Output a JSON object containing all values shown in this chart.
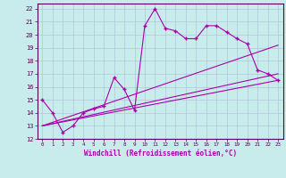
{
  "xlabel": "Windchill (Refroidissement éolien,°C)",
  "background_color": "#c8ecec",
  "grid_color": "#b0c8d8",
  "line_color": "#aa00aa",
  "xlim": [
    -0.5,
    23.5
  ],
  "ylim": [
    12,
    22.4
  ],
  "xticks": [
    0,
    1,
    2,
    3,
    4,
    5,
    6,
    7,
    8,
    9,
    10,
    11,
    12,
    13,
    14,
    15,
    16,
    17,
    18,
    19,
    20,
    21,
    22,
    23
  ],
  "yticks": [
    12,
    13,
    14,
    15,
    16,
    17,
    18,
    19,
    20,
    21,
    22
  ],
  "line1_x": [
    0,
    1,
    2,
    3,
    4,
    5,
    6,
    7,
    8,
    9,
    10,
    11,
    12,
    13,
    14,
    15,
    16,
    17,
    18,
    19,
    20,
    21,
    22,
    23
  ],
  "line1_y": [
    15.0,
    14.0,
    12.5,
    13.0,
    14.0,
    14.3,
    14.5,
    16.7,
    15.8,
    14.2,
    20.7,
    22.0,
    20.5,
    20.3,
    19.7,
    19.7,
    20.7,
    20.7,
    20.2,
    19.7,
    19.3,
    17.3,
    17.0,
    16.5
  ],
  "line2_x": [
    0,
    23
  ],
  "line2_y": [
    13.0,
    16.5
  ],
  "line3_x": [
    0,
    23
  ],
  "line3_y": [
    13.0,
    17.0
  ],
  "line4_x": [
    0,
    23
  ],
  "line4_y": [
    13.0,
    19.2
  ]
}
